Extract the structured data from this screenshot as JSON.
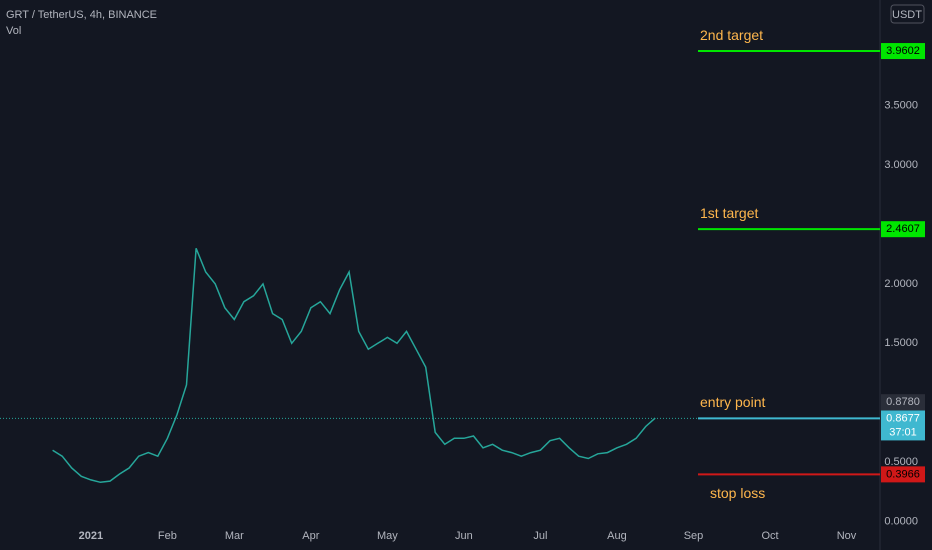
{
  "header": {
    "symbol": "GRT / TetherUS, 4h, BINANCE",
    "volume_label": "Vol",
    "currency": "USDT"
  },
  "chart_data": {
    "type": "line",
    "color": "#26a69a",
    "categories": [
      null,
      null,
      null,
      null,
      null,
      null,
      null,
      null,
      null,
      "2021",
      null,
      null,
      null,
      null,
      null,
      null,
      null,
      "Feb",
      null,
      null,
      null,
      null,
      null,
      null,
      "Mar",
      null,
      null,
      null,
      null,
      null,
      null,
      null,
      "Apr",
      null,
      null,
      null,
      null,
      null,
      null,
      null,
      "May",
      null,
      null,
      null,
      null,
      null,
      null,
      null,
      "Jun",
      null,
      null,
      null,
      null,
      null,
      null,
      null,
      "Jul",
      null,
      null,
      null,
      null,
      null,
      null,
      null,
      "Aug",
      null,
      null,
      null,
      null,
      null,
      null,
      null,
      "Sep",
      null,
      null,
      null,
      null,
      null,
      null,
      null,
      "Oct",
      null,
      null,
      null,
      null,
      null,
      null,
      null,
      "Nov",
      null,
      null,
      null
    ],
    "values": [
      null,
      null,
      null,
      null,
      null,
      0.6,
      0.55,
      0.45,
      0.38,
      0.35,
      0.33,
      0.34,
      0.4,
      0.45,
      0.55,
      0.58,
      0.55,
      0.7,
      0.9,
      1.15,
      2.3,
      2.1,
      2.0,
      1.8,
      1.7,
      1.85,
      1.9,
      2.0,
      1.75,
      1.7,
      1.5,
      1.6,
      1.8,
      1.85,
      1.75,
      1.95,
      2.1,
      1.6,
      1.45,
      1.5,
      1.55,
      1.5,
      1.6,
      1.45,
      1.3,
      0.75,
      0.65,
      0.7,
      0.7,
      0.72,
      0.62,
      0.65,
      0.6,
      0.58,
      0.55,
      0.58,
      0.6,
      0.68,
      0.7,
      0.62,
      0.55,
      0.53,
      0.57,
      0.58,
      0.62,
      0.65,
      0.7,
      0.8,
      0.87,
      null,
      null,
      null,
      null,
      null,
      null,
      null,
      null,
      null,
      null,
      null,
      null,
      null,
      null,
      null,
      null,
      null,
      null,
      null,
      null,
      null,
      null,
      null
    ],
    "ylim": [
      -0.24,
      4.39
    ],
    "yticks": [
      {
        "value": 0,
        "label": "0.0000"
      },
      {
        "value": 0.5,
        "label": "0.5000"
      },
      {
        "value": 1.5,
        "label": "1.5000"
      },
      {
        "value": 2,
        "label": "2.0000"
      },
      {
        "value": 3,
        "label": "3.0000"
      },
      {
        "value": 3.5,
        "label": "3.5000"
      }
    ],
    "levels": [
      {
        "name": "2nd target",
        "value": 3.9602,
        "color": "#00e600"
      },
      {
        "name": "1st target",
        "value": 2.4607,
        "color": "#00e600"
      },
      {
        "name": "entry point",
        "value": 0.8677,
        "color": "#3fb8d0"
      },
      {
        "name": "stop loss",
        "value": 0.3966,
        "color": "#d01818"
      }
    ],
    "high_marker": {
      "value": 0.878,
      "label": "0.8780"
    },
    "countdown": "37:01"
  }
}
